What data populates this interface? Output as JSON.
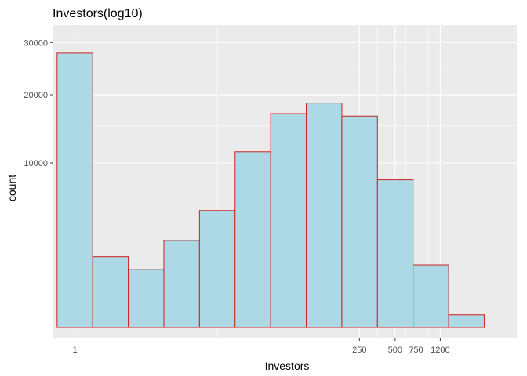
{
  "chart_data": {
    "type": "bar",
    "title": "Investors(log10)",
    "xlabel": "Investors",
    "ylabel": "count",
    "x_scale": "log10",
    "y_scale": "sqrt",
    "bin_width_log10": 0.3,
    "bins_log10_center": [
      0,
      0.3,
      0.6,
      0.9,
      1.2,
      1.5,
      1.8,
      2.1,
      2.4,
      2.7,
      3.0,
      3.3
    ],
    "values": [
      27800,
      1850,
      1250,
      2800,
      5050,
      11400,
      16900,
      18600,
      16500,
      8050,
      1450,
      60
    ],
    "x_ticks": [
      {
        "value": 1,
        "label": "1"
      },
      {
        "value": 250,
        "label": "250"
      },
      {
        "value": 500,
        "label": "500"
      },
      {
        "value": 750,
        "label": "750"
      },
      {
        "value": 1200,
        "label": "1200"
      }
    ],
    "y_ticks": [
      {
        "value": 10000,
        "label": "10000"
      },
      {
        "value": 20000,
        "label": "20000"
      },
      {
        "value": 30000,
        "label": "30000"
      }
    ],
    "fill_color": "#add8e6",
    "border_color": "#cc2222",
    "panel_color": "#ebebeb",
    "grid": true
  }
}
